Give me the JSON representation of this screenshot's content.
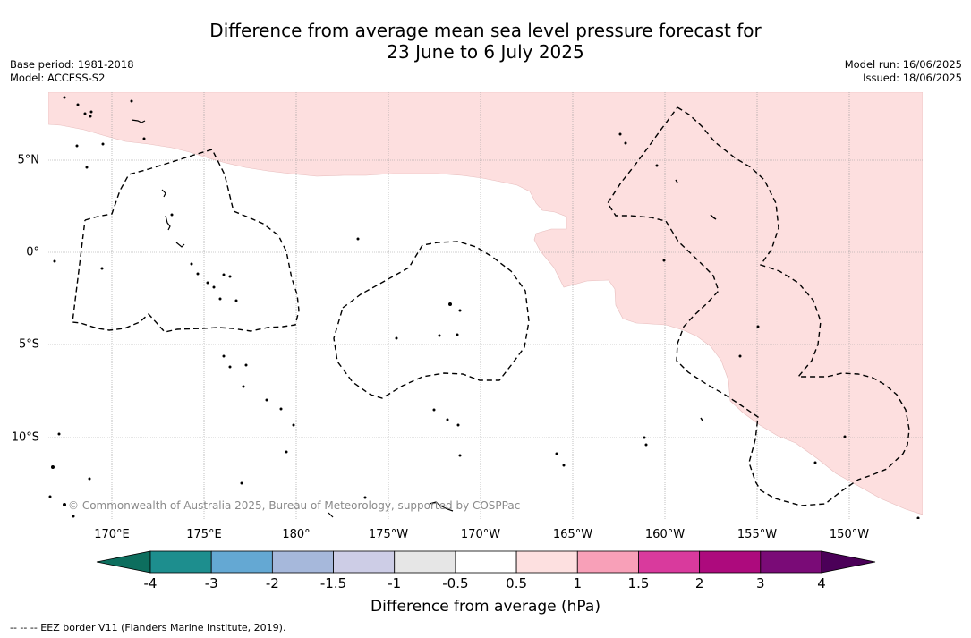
{
  "title": {
    "line1": "Difference from average mean sea level pressure forecast for",
    "line2": "23 June to 6 July 2025"
  },
  "meta_left": {
    "base_period": "Base period: 1981-2018",
    "model": "Model: ACCESS-S2"
  },
  "meta_right": {
    "model_run": "Model run: 16/06/2025",
    "issued": "Issued: 18/06/2025"
  },
  "map": {
    "lon_labels": [
      "170°E",
      "175°E",
      "180°",
      "175°W",
      "170°W",
      "165°W",
      "160°W",
      "155°W",
      "150°W"
    ],
    "lat_labels": [
      "5°N",
      "0°",
      "5°S",
      "10°S"
    ],
    "anomaly_fill": "0.5 to 1 hPa above average over the north-eastern part of the map",
    "copyright": "© Commonwealth of Australia 2025, Bureau of Meteorology, supported by COSPPac"
  },
  "colorbar": {
    "title": "Difference from average (hPa)",
    "tick_labels": [
      "-4",
      "-3",
      "-2",
      "-1.5",
      "-1",
      "-0.5",
      "0.5",
      "1",
      "1.5",
      "2",
      "3",
      "4"
    ],
    "colors": [
      "#1d8e8e",
      "#64a8d3",
      "#a6b8db",
      "#cdcde6",
      "#e6e6e6",
      "#ffffff",
      "#fde0e0",
      "#f8a0b8",
      "#d93a9d",
      "#ad0a7d",
      "#7a0b77"
    ],
    "low_extend_color": "#0d6e5e",
    "high_extend_color": "#4b0058"
  },
  "footer": {
    "eez": "--  --  -- EEZ border V11 (Flanders Marine Institute, 2019)."
  }
}
